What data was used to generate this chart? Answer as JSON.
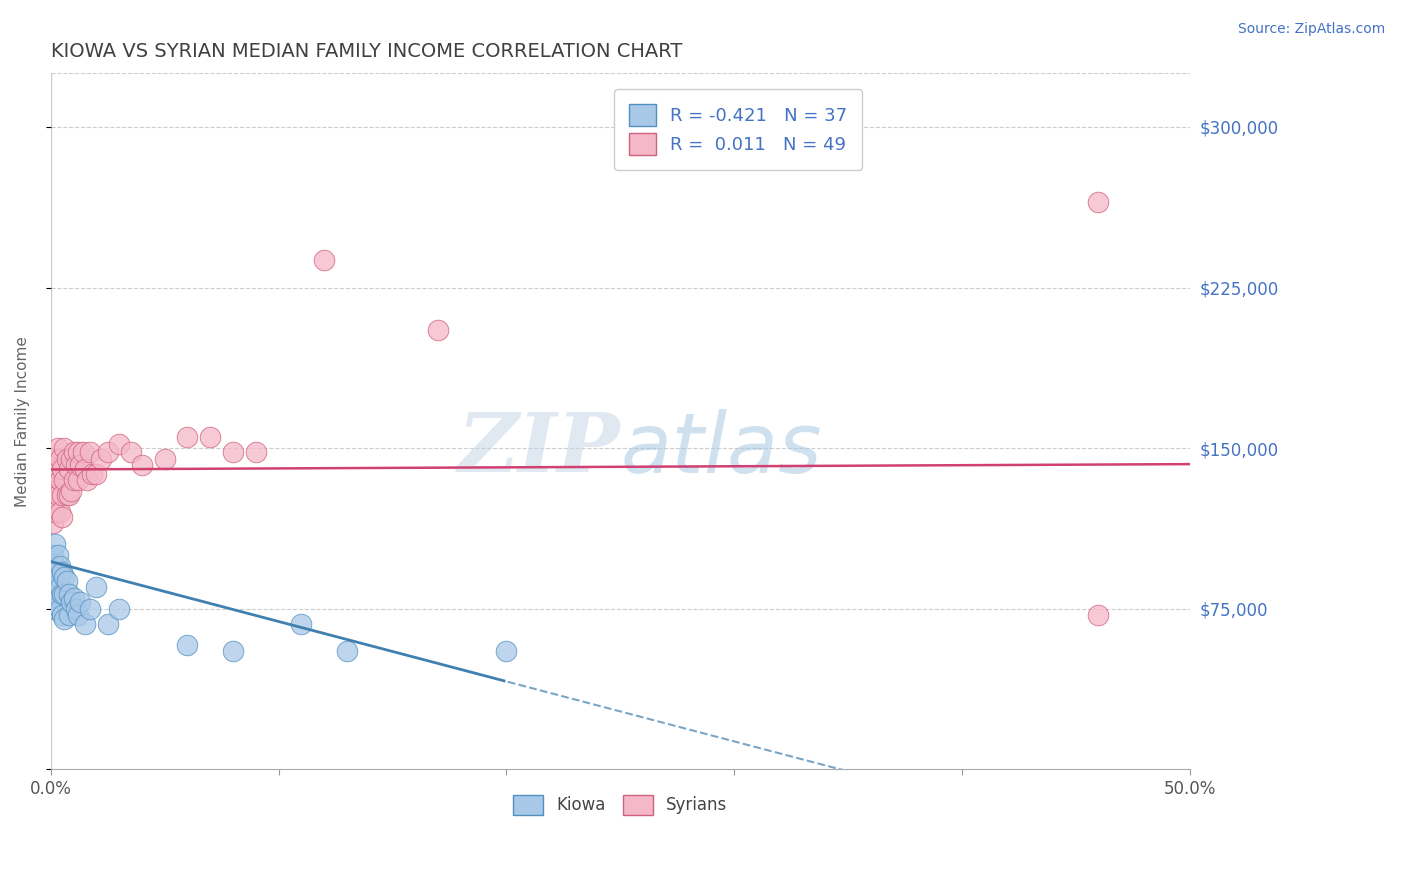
{
  "title": "KIOWA VS SYRIAN MEDIAN FAMILY INCOME CORRELATION CHART",
  "source_text": "Source: ZipAtlas.com",
  "ylabel": "Median Family Income",
  "xlim": [
    0.0,
    0.5
  ],
  "ylim": [
    0,
    325000
  ],
  "yticks": [
    0,
    75000,
    150000,
    225000,
    300000
  ],
  "ytick_labels": [
    "",
    "$75,000",
    "$150,000",
    "$225,000",
    "$300,000"
  ],
  "xticks": [
    0.0,
    0.1,
    0.2,
    0.3,
    0.4,
    0.5
  ],
  "xtick_labels": [
    "0.0%",
    "",
    "",
    "",
    "",
    "50.0%"
  ],
  "kiowa_color": "#a8c8e8",
  "syrian_color": "#f4b8c8",
  "kiowa_edge": "#5090c0",
  "syrian_edge": "#d06080",
  "regression_kiowa_color": "#4080b0",
  "regression_syrian_color": "#d04070",
  "legend_R_kiowa": "-0.421",
  "legend_N_kiowa": "37",
  "legend_R_syrian": "0.011",
  "legend_N_syrian": "49",
  "label_kiowa": "Kiowa",
  "label_syrian": "Syrians",
  "ytick_color": "#4472c4",
  "title_color": "#404040",
  "watermark_zip": "ZIP",
  "watermark_atlas": "atlas",
  "kiowa_x": [
    0.001,
    0.001,
    0.001,
    0.002,
    0.002,
    0.002,
    0.002,
    0.003,
    0.003,
    0.003,
    0.004,
    0.004,
    0.004,
    0.005,
    0.005,
    0.005,
    0.006,
    0.006,
    0.006,
    0.007,
    0.008,
    0.008,
    0.009,
    0.01,
    0.011,
    0.012,
    0.013,
    0.015,
    0.017,
    0.02,
    0.025,
    0.03,
    0.06,
    0.08,
    0.11,
    0.13,
    0.2
  ],
  "kiowa_y": [
    100000,
    90000,
    80000,
    105000,
    95000,
    85000,
    75000,
    100000,
    90000,
    80000,
    95000,
    85000,
    75000,
    92000,
    82000,
    72000,
    90000,
    82000,
    70000,
    88000,
    82000,
    72000,
    78000,
    80000,
    75000,
    72000,
    78000,
    68000,
    75000,
    85000,
    68000,
    75000,
    58000,
    55000,
    68000,
    55000,
    55000
  ],
  "syrian_x": [
    0.001,
    0.001,
    0.001,
    0.002,
    0.002,
    0.002,
    0.003,
    0.003,
    0.003,
    0.004,
    0.004,
    0.004,
    0.005,
    0.005,
    0.005,
    0.006,
    0.006,
    0.007,
    0.007,
    0.008,
    0.008,
    0.009,
    0.009,
    0.01,
    0.01,
    0.011,
    0.012,
    0.012,
    0.013,
    0.014,
    0.015,
    0.016,
    0.017,
    0.018,
    0.02,
    0.022,
    0.025,
    0.03,
    0.035,
    0.04,
    0.05,
    0.06,
    0.07,
    0.08,
    0.09,
    0.12,
    0.17,
    0.46,
    0.46
  ],
  "syrian_y": [
    135000,
    125000,
    115000,
    145000,
    130000,
    120000,
    150000,
    140000,
    128000,
    145000,
    135000,
    120000,
    140000,
    128000,
    118000,
    150000,
    135000,
    145000,
    128000,
    140000,
    128000,
    145000,
    130000,
    148000,
    135000,
    142000,
    148000,
    135000,
    142000,
    148000,
    140000,
    135000,
    148000,
    138000,
    138000,
    145000,
    148000,
    152000,
    148000,
    142000,
    145000,
    155000,
    155000,
    148000,
    148000,
    238000,
    205000,
    72000,
    265000
  ],
  "syrian_intercept": 140000,
  "syrian_slope": 5000,
  "kiowa_intercept": 97000,
  "kiowa_slope": -280000
}
